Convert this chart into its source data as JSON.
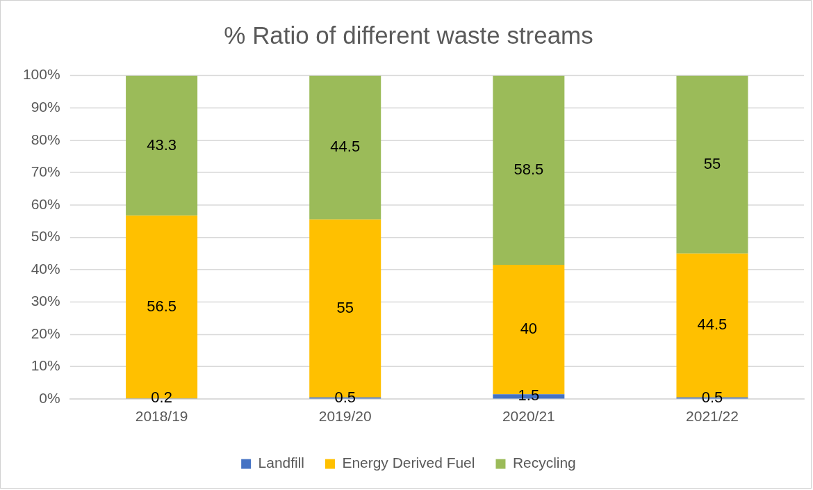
{
  "chart_data": {
    "type": "bar",
    "title": "% Ratio of different waste streams",
    "categories": [
      "2018/19",
      "2019/20",
      "2020/21",
      "2021/22"
    ],
    "stacked": true,
    "series": [
      {
        "name": "Landfill",
        "color": "#4472c4",
        "values": [
          0.2,
          0.5,
          1.5,
          0.5
        ]
      },
      {
        "name": "Energy Derived Fuel",
        "color": "#ffc000",
        "values": [
          56.5,
          55,
          40,
          44.5
        ]
      },
      {
        "name": "Recycling",
        "color": "#9bbb59",
        "values": [
          43.3,
          44.5,
          58.5,
          55
        ]
      }
    ],
    "ylim": [
      0,
      100
    ],
    "yticks": [
      {
        "value": 0,
        "label": "0%"
      },
      {
        "value": 10,
        "label": "10%"
      },
      {
        "value": 20,
        "label": "20%"
      },
      {
        "value": 30,
        "label": "30%"
      },
      {
        "value": 40,
        "label": "40%"
      },
      {
        "value": 50,
        "label": "50%"
      },
      {
        "value": 60,
        "label": "60%"
      },
      {
        "value": 70,
        "label": "70%"
      },
      {
        "value": 80,
        "label": "80%"
      },
      {
        "value": 90,
        "label": "90%"
      },
      {
        "value": 100,
        "label": "100%"
      }
    ],
    "grid": "y",
    "legend": "bottom",
    "data_labels": true
  }
}
